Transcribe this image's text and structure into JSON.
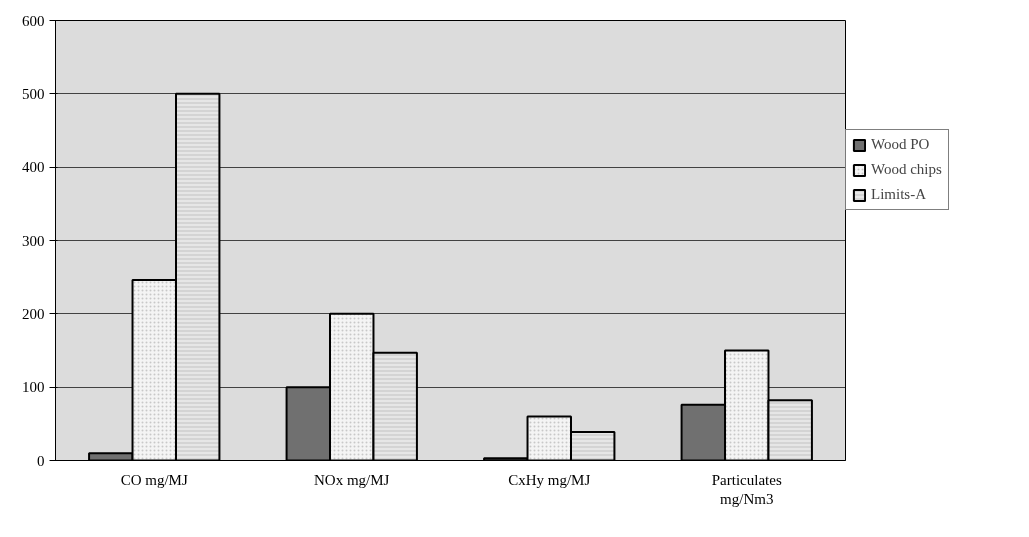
{
  "chart_data": {
    "type": "bar",
    "categories": [
      "CO mg/MJ",
      "NOx mg/MJ",
      "CxHy mg/MJ",
      "Particulates mg/Nm3"
    ],
    "series": [
      {
        "name": "Wood PO",
        "color": "#707070",
        "values": [
          10,
          100,
          3,
          76
        ]
      },
      {
        "name": "Wood chips",
        "color": "#f4f4f4",
        "values": [
          246,
          200,
          60,
          150
        ]
      },
      {
        "name": "Limits-A",
        "color": "#e6e6e6",
        "values": [
          500,
          147,
          39,
          82
        ]
      }
    ],
    "ylim": [
      0,
      600
    ],
    "yticks": [
      0,
      100,
      200,
      300,
      400,
      500,
      600
    ],
    "grid": "y",
    "legend": "right"
  }
}
